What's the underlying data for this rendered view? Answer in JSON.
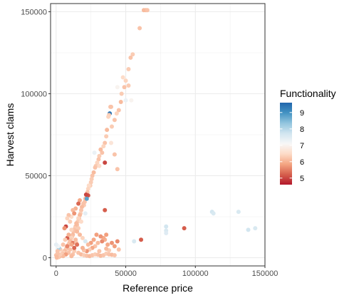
{
  "chart_data": {
    "type": "scatter",
    "xlabel": "Reference price",
    "ylabel": "Harvest clams",
    "xlim": [
      -4000,
      150000
    ],
    "ylim": [
      -5000,
      155000
    ],
    "xticks": [
      0,
      50000,
      100000,
      150000
    ],
    "xtick_labels": [
      "0",
      "50000",
      "100000",
      "150000"
    ],
    "yticks": [
      0,
      50000,
      100000,
      150000
    ],
    "ytick_labels": [
      "0",
      "50000",
      "100000",
      "150000"
    ],
    "grid": true,
    "legend": {
      "title": "Functionality",
      "position": "right",
      "min": 4.6,
      "max": 9.6,
      "breaks": [
        5,
        6,
        7,
        8,
        9
      ],
      "break_labels": [
        "5",
        "6",
        "7",
        "8",
        "9"
      ],
      "colors": [
        "#b2182b",
        "#d6604d",
        "#f4a582",
        "#fddbc7",
        "#f7f7f7",
        "#d1e5f0",
        "#92c5de",
        "#4393c3",
        "#2166ac"
      ]
    },
    "points": [
      [
        63000,
        151000,
        6.1
      ],
      [
        64500,
        151000,
        6.1
      ],
      [
        65500,
        151000,
        6.2
      ],
      [
        60000,
        140000,
        6.2
      ],
      [
        55000,
        124000,
        6.3
      ],
      [
        53500,
        122000,
        6.2
      ],
      [
        52000,
        115000,
        6.3
      ],
      [
        50000,
        108000,
        6.4
      ],
      [
        49000,
        104000,
        6.2
      ],
      [
        48000,
        110000,
        6.5
      ],
      [
        47000,
        100000,
        6.3
      ],
      [
        46500,
        95000,
        6.1
      ],
      [
        45000,
        90000,
        6.2
      ],
      [
        43500,
        88000,
        6.4
      ],
      [
        42000,
        84000,
        6.2
      ],
      [
        40000,
        80000,
        6.3
      ],
      [
        39500,
        92000,
        6.2
      ],
      [
        39000,
        92000,
        6.2
      ],
      [
        38500,
        88000,
        9.4
      ],
      [
        38000,
        87000,
        6.3
      ],
      [
        37500,
        86000,
        6.4
      ],
      [
        36500,
        78000,
        6.1
      ],
      [
        36000,
        74000,
        6.3
      ],
      [
        35000,
        70000,
        6.2
      ],
      [
        34000,
        68000,
        6.4
      ],
      [
        33000,
        64000,
        6.2
      ],
      [
        32000,
        66000,
        6.1
      ],
      [
        31000,
        62000,
        6.3
      ],
      [
        30500,
        60000,
        6.2
      ],
      [
        29500,
        58000,
        6.4
      ],
      [
        28500,
        56000,
        6.3
      ],
      [
        28000,
        55000,
        6.2
      ],
      [
        27500,
        64000,
        7.3
      ],
      [
        27000,
        52000,
        6.1
      ],
      [
        26000,
        50000,
        6.2
      ],
      [
        25500,
        48000,
        6.3
      ],
      [
        25000,
        46000,
        6.3
      ],
      [
        24500,
        44000,
        6.3
      ],
      [
        23500,
        44000,
        6.5
      ],
      [
        23000,
        42000,
        6.4
      ],
      [
        22500,
        40000,
        6.2
      ],
      [
        22000,
        38000,
        6.1
      ],
      [
        21000,
        36000,
        6.1
      ],
      [
        20500,
        34000,
        6.2
      ],
      [
        20000,
        32000,
        6.3
      ],
      [
        19500,
        33000,
        6.2
      ],
      [
        18500,
        31000,
        6.1
      ],
      [
        18000,
        29000,
        6.2
      ],
      [
        17500,
        27000,
        6.3
      ],
      [
        17000,
        26000,
        6.1
      ],
      [
        16500,
        24000,
        6.2
      ],
      [
        16000,
        24000,
        6.4
      ],
      [
        15500,
        22000,
        6.3
      ],
      [
        15000,
        20000,
        6.2
      ],
      [
        14500,
        21000,
        6.1
      ],
      [
        14000,
        19000,
        6.1
      ],
      [
        13500,
        18000,
        6.3
      ],
      [
        13000,
        17000,
        6.2
      ],
      [
        12500,
        16000,
        6.2
      ],
      [
        12000,
        14000,
        6.1
      ],
      [
        11500,
        13000,
        6.2
      ],
      [
        11000,
        12000,
        6.4
      ],
      [
        10500,
        11000,
        6.3
      ],
      [
        10000,
        10000,
        6.1
      ],
      [
        9500,
        9000,
        6.2
      ],
      [
        9000,
        8000,
        6.1
      ],
      [
        8500,
        7500,
        6.3
      ],
      [
        8000,
        7000,
        6.2
      ],
      [
        7500,
        6000,
        6.1
      ],
      [
        7000,
        5000,
        6.2
      ],
      [
        6500,
        4500,
        6.3
      ],
      [
        6000,
        4000,
        6.1
      ],
      [
        5500,
        3500,
        6.2
      ],
      [
        5000,
        3000,
        6.4
      ],
      [
        4500,
        2500,
        6.2
      ],
      [
        4000,
        2000,
        6.3
      ],
      [
        3500,
        1500,
        6.1
      ],
      [
        3000,
        1000,
        6.2
      ],
      [
        2500,
        800,
        6.3
      ],
      [
        2000,
        500,
        6.2
      ],
      [
        1500,
        300,
        6.1
      ],
      [
        1000,
        200,
        6.4
      ],
      [
        500,
        0,
        6.2
      ],
      [
        23000,
        38000,
        5.1
      ],
      [
        22000,
        36000,
        8.8
      ],
      [
        21500,
        38500,
        5.0
      ],
      [
        17000,
        35000,
        5.9
      ],
      [
        16000,
        33000,
        5.3
      ],
      [
        14000,
        30000,
        6.0
      ],
      [
        12000,
        29000,
        6.1
      ],
      [
        13000,
        27000,
        5.7
      ],
      [
        11000,
        25000,
        6.5
      ],
      [
        10000,
        22000,
        6.3
      ],
      [
        9000,
        26000,
        6.2
      ],
      [
        8000,
        24000,
        6.4
      ],
      [
        7000,
        19000,
        5.0
      ],
      [
        6000,
        18000,
        5.7
      ],
      [
        8000,
        12000,
        5.2
      ],
      [
        9000,
        14000,
        6.0
      ],
      [
        11000,
        17000,
        6.4
      ],
      [
        12000,
        9000,
        5.5
      ],
      [
        14000,
        11000,
        6.1
      ],
      [
        10000,
        5000,
        6.2
      ],
      [
        8000,
        7000,
        5.6
      ],
      [
        6500,
        11000,
        6.3
      ],
      [
        5000,
        8000,
        6.2
      ],
      [
        3000,
        5000,
        6.3
      ],
      [
        2000,
        6000,
        8.1
      ],
      [
        1000,
        4000,
        6.2
      ],
      [
        1500,
        7000,
        7.2
      ],
      [
        0,
        8000,
        7.4
      ],
      [
        21000,
        27000,
        7.4
      ],
      [
        18000,
        22000,
        6.5
      ],
      [
        16000,
        18000,
        6.3
      ],
      [
        15000,
        16000,
        6.1
      ],
      [
        14500,
        9000,
        6.2
      ],
      [
        13000,
        4000,
        6.3
      ],
      [
        12000,
        2000,
        6.2
      ],
      [
        11000,
        1000,
        6.1
      ],
      [
        16000,
        3000,
        6.2
      ],
      [
        18000,
        2000,
        6.1
      ],
      [
        20000,
        1500,
        6.3
      ],
      [
        22000,
        1200,
        6.2
      ],
      [
        24000,
        1000,
        6.1
      ],
      [
        26000,
        1500,
        6.2
      ],
      [
        28000,
        2000,
        6.3
      ],
      [
        30000,
        1800,
        6.2
      ],
      [
        32000,
        1200,
        6.1
      ],
      [
        34000,
        1500,
        6.2
      ],
      [
        36000,
        2500,
        6.3
      ],
      [
        38000,
        2000,
        6.2
      ],
      [
        40000,
        1800,
        6.1
      ],
      [
        42000,
        1500,
        6.2
      ],
      [
        35000,
        29000,
        5.2
      ],
      [
        35000,
        58000,
        5.0
      ],
      [
        39500,
        70000,
        6.7
      ],
      [
        44000,
        104000,
        7.0
      ],
      [
        50000,
        96000,
        7.3
      ],
      [
        42000,
        63000,
        6.2
      ],
      [
        36000,
        14000,
        5.8
      ],
      [
        35000,
        11000,
        6.0
      ],
      [
        33000,
        10000,
        5.6
      ],
      [
        30000,
        9000,
        6.1
      ],
      [
        28000,
        7000,
        6.2
      ],
      [
        26000,
        6000,
        5.9
      ],
      [
        24000,
        5000,
        6.3
      ],
      [
        22000,
        4000,
        5.7
      ],
      [
        20000,
        4500,
        6.2
      ],
      [
        19000,
        6000,
        6.0
      ],
      [
        40000,
        9000,
        5.7
      ],
      [
        42000,
        7000,
        5.8
      ],
      [
        45000,
        5000,
        6.2
      ],
      [
        44000,
        10000,
        5.6
      ],
      [
        38000,
        4500,
        6.3
      ],
      [
        31000,
        4000,
        6.2
      ],
      [
        27000,
        11000,
        5.9
      ],
      [
        25000,
        9000,
        5.8
      ],
      [
        23000,
        8000,
        6.1
      ],
      [
        21000,
        10000,
        7.6
      ],
      [
        19000,
        12000,
        6.4
      ],
      [
        17000,
        14000,
        6.1
      ],
      [
        15000,
        8000,
        5.4
      ],
      [
        13000,
        6000,
        5.3
      ],
      [
        11000,
        8000,
        5.9
      ],
      [
        9000,
        3000,
        6.2
      ],
      [
        7000,
        2000,
        5.8
      ],
      [
        5000,
        1000,
        6.1
      ],
      [
        3000,
        2000,
        6.3
      ],
      [
        1000,
        2500,
        6.2
      ],
      [
        0,
        1500,
        6.2
      ],
      [
        500,
        500,
        6.1
      ],
      [
        36000,
        5500,
        6.1
      ],
      [
        37000,
        8000,
        5.9
      ],
      [
        34000,
        12000,
        5.9
      ],
      [
        32000,
        13000,
        5.7
      ],
      [
        29000,
        14000,
        5.8
      ],
      [
        56000,
        10000,
        7.6
      ],
      [
        61000,
        11000,
        5.2
      ],
      [
        79000,
        19000,
        7.7
      ],
      [
        79000,
        16500,
        7.6
      ],
      [
        79000,
        15000,
        7.5
      ],
      [
        92000,
        18000,
        5.2
      ],
      [
        112000,
        28000,
        7.7
      ],
      [
        113000,
        27000,
        7.6
      ],
      [
        131000,
        28000,
        7.6
      ],
      [
        138000,
        17000,
        7.7
      ],
      [
        143000,
        18000,
        7.6
      ],
      [
        54000,
        96000,
        7.0
      ],
      [
        52000,
        105000,
        6.3
      ],
      [
        44000,
        54000,
        6.2
      ],
      [
        31000,
        56000,
        6.5
      ]
    ]
  }
}
